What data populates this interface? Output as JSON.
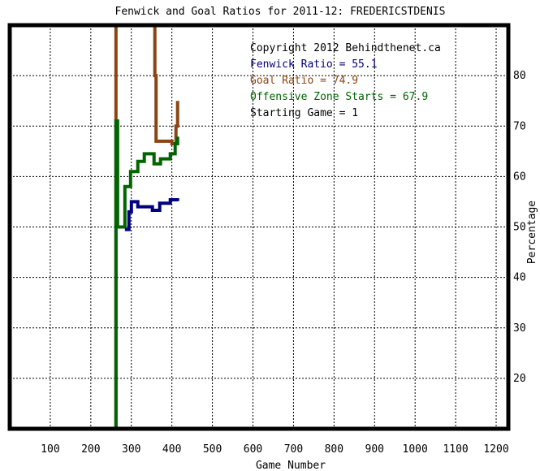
{
  "chart_data": {
    "type": "line",
    "title": "Fenwick and Goal Ratios for 2011-12: FREDERICSTDENIS",
    "xlabel": "Game Number",
    "ylabel": "Percentage",
    "xlim": [
      0,
      1230
    ],
    "ylim": [
      10,
      90
    ],
    "x_ticks": [
      100,
      200,
      300,
      400,
      500,
      600,
      700,
      800,
      900,
      1000,
      1100,
      1200
    ],
    "y_ticks": [
      20,
      30,
      40,
      50,
      60,
      70,
      80
    ],
    "grid": true,
    "legend_position": "top-right",
    "annotations": {
      "copyright": "Copyright 2012 Behindthenet.ca",
      "fenwick": "Fenwick Ratio = 55.1",
      "goal": "Goal Ratio = 74.9",
      "ozone": "Offensive Zone Starts = 67.9",
      "starting_game": "Starting Game = 1"
    },
    "series": [
      {
        "key": "goal",
        "color": "#8b4513",
        "points": [
          [
            262,
            90
          ],
          [
            262,
            10
          ]
        ],
        "points2": [
          [
            358,
            90
          ],
          [
            358,
            80
          ],
          [
            361,
            80
          ],
          [
            361,
            67
          ],
          [
            400,
            67
          ],
          [
            400,
            66.5
          ],
          [
            410,
            66.5
          ],
          [
            410,
            70
          ],
          [
            414,
            70
          ],
          [
            414,
            75
          ]
        ]
      },
      {
        "key": "ozone",
        "color": "#006400",
        "points": [
          [
            262,
            10
          ],
          [
            262,
            71
          ],
          [
            266,
            71
          ],
          [
            266,
            50
          ],
          [
            284,
            50
          ],
          [
            284,
            58
          ],
          [
            298,
            58
          ],
          [
            298,
            61
          ],
          [
            316,
            61
          ],
          [
            316,
            63
          ],
          [
            332,
            63
          ],
          [
            332,
            64.5
          ],
          [
            356,
            64.5
          ],
          [
            356,
            62.5
          ],
          [
            372,
            62.5
          ],
          [
            372,
            63.5
          ],
          [
            396,
            63.5
          ],
          [
            396,
            64.5
          ],
          [
            408,
            64.5
          ],
          [
            408,
            66.5
          ],
          [
            414,
            66.5
          ],
          [
            414,
            67.9
          ]
        ]
      },
      {
        "key": "fenwick",
        "color": "#000080",
        "points": [
          [
            284,
            49.5
          ],
          [
            294,
            49.5
          ],
          [
            294,
            53
          ],
          [
            300,
            53
          ],
          [
            300,
            55
          ],
          [
            316,
            55
          ],
          [
            316,
            54
          ],
          [
            352,
            54
          ],
          [
            352,
            53.3
          ],
          [
            370,
            53.3
          ],
          [
            370,
            54.7
          ],
          [
            396,
            54.7
          ],
          [
            396,
            55.4
          ],
          [
            414,
            55.4
          ],
          [
            414,
            55.1
          ]
        ]
      }
    ]
  }
}
